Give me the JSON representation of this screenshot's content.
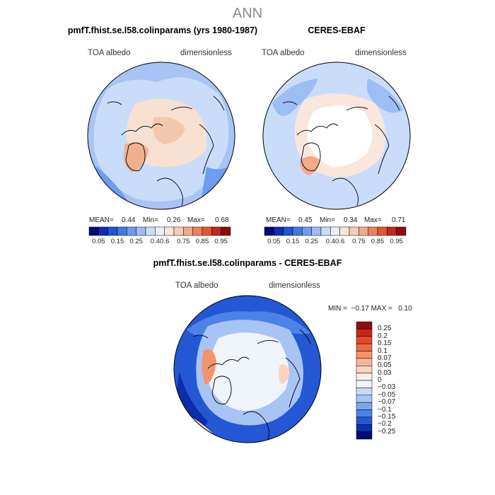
{
  "page_title": "ANN",
  "chart_data": [
    {
      "type": "map",
      "title": "pmfT.fhist.se.l58.colinparams (yrs 1980-1987)",
      "variable": "TOA albedo",
      "units": "dimensionless",
      "stats": {
        "mean_label": "MEAN=",
        "mean": "0.44",
        "min_label": "Min=",
        "min": "0.26",
        "max_label": "Max=",
        "max": "0.68"
      },
      "colorbar_ticks": [
        "0.05",
        "0.15",
        "0.25",
        "0.4",
        "0.6",
        "0.75",
        "0.85",
        "0.95"
      ]
    },
    {
      "type": "map",
      "title": "CERES-EBAF",
      "variable": "TOA albedo",
      "units": "dimensionless",
      "stats": {
        "mean_label": "MEAN=",
        "mean": "0.45",
        "min_label": "Min=",
        "min": "0.34",
        "max_label": "Max=",
        "max": "0.71"
      },
      "colorbar_ticks": [
        "0.05",
        "0.15",
        "0.25",
        "0.4",
        "0.6",
        "0.75",
        "0.85",
        "0.95"
      ]
    },
    {
      "type": "map",
      "title": "pmfT.fhist.se.l58.colinparams - CERES-EBAF",
      "variable": "TOA albedo",
      "units": "dimensionless",
      "minmax_text": "MIN =  −0.17 MAX =   0.10",
      "colorbar_ticks": [
        "0.25",
        "0.2",
        "0.15",
        "0.1",
        "0.07",
        "0.05",
        "0.03",
        "0",
        "−0.03",
        "−0.05",
        "−0.07",
        "−0.1",
        "−0.15",
        "−0.2",
        "−0.25"
      ]
    }
  ],
  "palettes": {
    "levels": [
      "#08087a",
      "#0a2fb8",
      "#1f55d6",
      "#3f79e8",
      "#6e9cf0",
      "#9cbef5",
      "#c9dcf9",
      "#e9f0fb",
      "#f9e6dc",
      "#f7ccb4",
      "#f4aa86",
      "#ef8058",
      "#e4562f",
      "#c52818",
      "#8f0c0c"
    ],
    "diff": [
      "#8f0c0c",
      "#c52818",
      "#e4482a",
      "#ef6a40",
      "#f4936a",
      "#f7b698",
      "#f9d4c2",
      "#faeee8",
      "#f0f4fb",
      "#c9dcf9",
      "#a8c4f5",
      "#7da4ee",
      "#4d82e6",
      "#2457d4",
      "#0b2ea9",
      "#08087a"
    ]
  }
}
